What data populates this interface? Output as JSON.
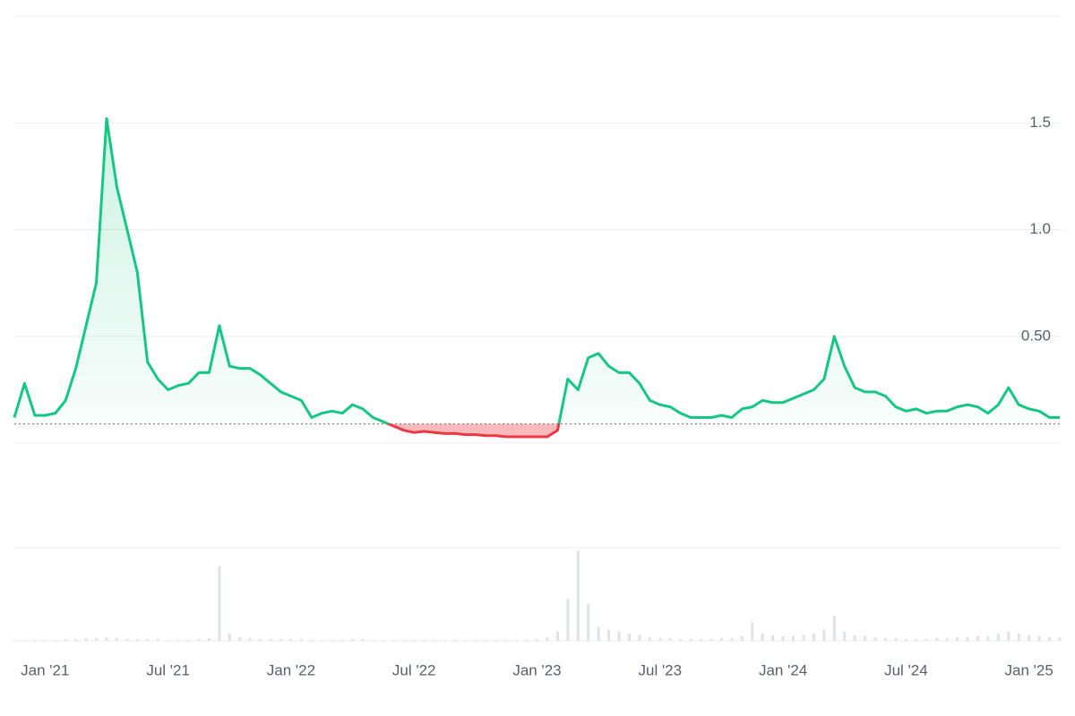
{
  "chart_data": {
    "type": "line",
    "categories": [
      null,
      null,
      null,
      "Jan '21",
      null,
      null,
      null,
      null,
      null,
      null,
      null,
      null,
      null,
      null,
      null,
      "Jul '21",
      null,
      null,
      null,
      null,
      null,
      null,
      null,
      null,
      null,
      null,
      null,
      "Jan '22",
      null,
      null,
      null,
      null,
      null,
      null,
      null,
      null,
      null,
      null,
      null,
      "Jul '22",
      null,
      null,
      null,
      null,
      null,
      null,
      null,
      null,
      null,
      null,
      null,
      "Jan '23",
      null,
      null,
      null,
      null,
      null,
      null,
      null,
      null,
      null,
      null,
      null,
      "Jul '23",
      null,
      null,
      null,
      null,
      null,
      null,
      null,
      null,
      null,
      null,
      null,
      "Jan '24",
      null,
      null,
      null,
      null,
      null,
      null,
      null,
      null,
      null,
      null,
      null,
      "Jul '24",
      null,
      null,
      null,
      null,
      null,
      null,
      null,
      null,
      null,
      null,
      null,
      "Jan '25",
      null,
      null,
      null
    ],
    "values": [
      0.12,
      0.28,
      0.13,
      0.13,
      0.14,
      0.2,
      0.35,
      0.55,
      0.75,
      1.52,
      1.2,
      1.0,
      0.8,
      0.38,
      0.3,
      0.25,
      0.27,
      0.28,
      0.33,
      0.33,
      0.55,
      0.36,
      0.35,
      0.35,
      0.32,
      0.28,
      0.24,
      0.22,
      0.2,
      0.12,
      0.14,
      0.15,
      0.14,
      0.18,
      0.16,
      0.12,
      0.1,
      0.08,
      0.06,
      0.05,
      0.055,
      0.05,
      0.045,
      0.045,
      0.04,
      0.04,
      0.035,
      0.035,
      0.03,
      0.03,
      0.03,
      0.03,
      0.03,
      0.06,
      0.3,
      0.25,
      0.4,
      0.42,
      0.36,
      0.33,
      0.33,
      0.28,
      0.2,
      0.18,
      0.17,
      0.14,
      0.12,
      0.12,
      0.12,
      0.13,
      0.12,
      0.16,
      0.17,
      0.2,
      0.19,
      0.19,
      0.21,
      0.23,
      0.25,
      0.3,
      0.5,
      0.36,
      0.26,
      0.24,
      0.24,
      0.22,
      0.17,
      0.15,
      0.16,
      0.14,
      0.15,
      0.15,
      0.17,
      0.18,
      0.17,
      0.14,
      0.18,
      0.26,
      0.18,
      0.16,
      0.15,
      0.12,
      0.12
    ],
    "volume": [
      1,
      1,
      1,
      1,
      1,
      2,
      2,
      3,
      3,
      4,
      3,
      2,
      2,
      2,
      2,
      1,
      1,
      1,
      2,
      3,
      80,
      8,
      4,
      3,
      2,
      2,
      2,
      2,
      2,
      1,
      1,
      1,
      1,
      2,
      2,
      1,
      1,
      1,
      1,
      1,
      1,
      1,
      1,
      1,
      1,
      1,
      1,
      1,
      1,
      1,
      1,
      2,
      4,
      10,
      45,
      97,
      40,
      15,
      12,
      10,
      8,
      6,
      4,
      3,
      3,
      2,
      2,
      2,
      2,
      3,
      3,
      5,
      20,
      8,
      6,
      5,
      5,
      6,
      8,
      12,
      27,
      10,
      6,
      5,
      4,
      3,
      3,
      2,
      2,
      2,
      3,
      3,
      4,
      4,
      5,
      5,
      8,
      10,
      8,
      6,
      5,
      4,
      4
    ],
    "ylim": [
      -0.49,
      2.0
    ],
    "yticks": [
      {
        "value": 0.5,
        "label": "0.50"
      },
      {
        "value": 1,
        "label": "1.0"
      },
      1.5
    ],
    "volume_lim": [
      0,
      100
    ],
    "baseline": 0.09,
    "up_color": "#16c784",
    "down_color": "#ea3943",
    "volume_color": "#dfe3e8",
    "grid": true
  }
}
